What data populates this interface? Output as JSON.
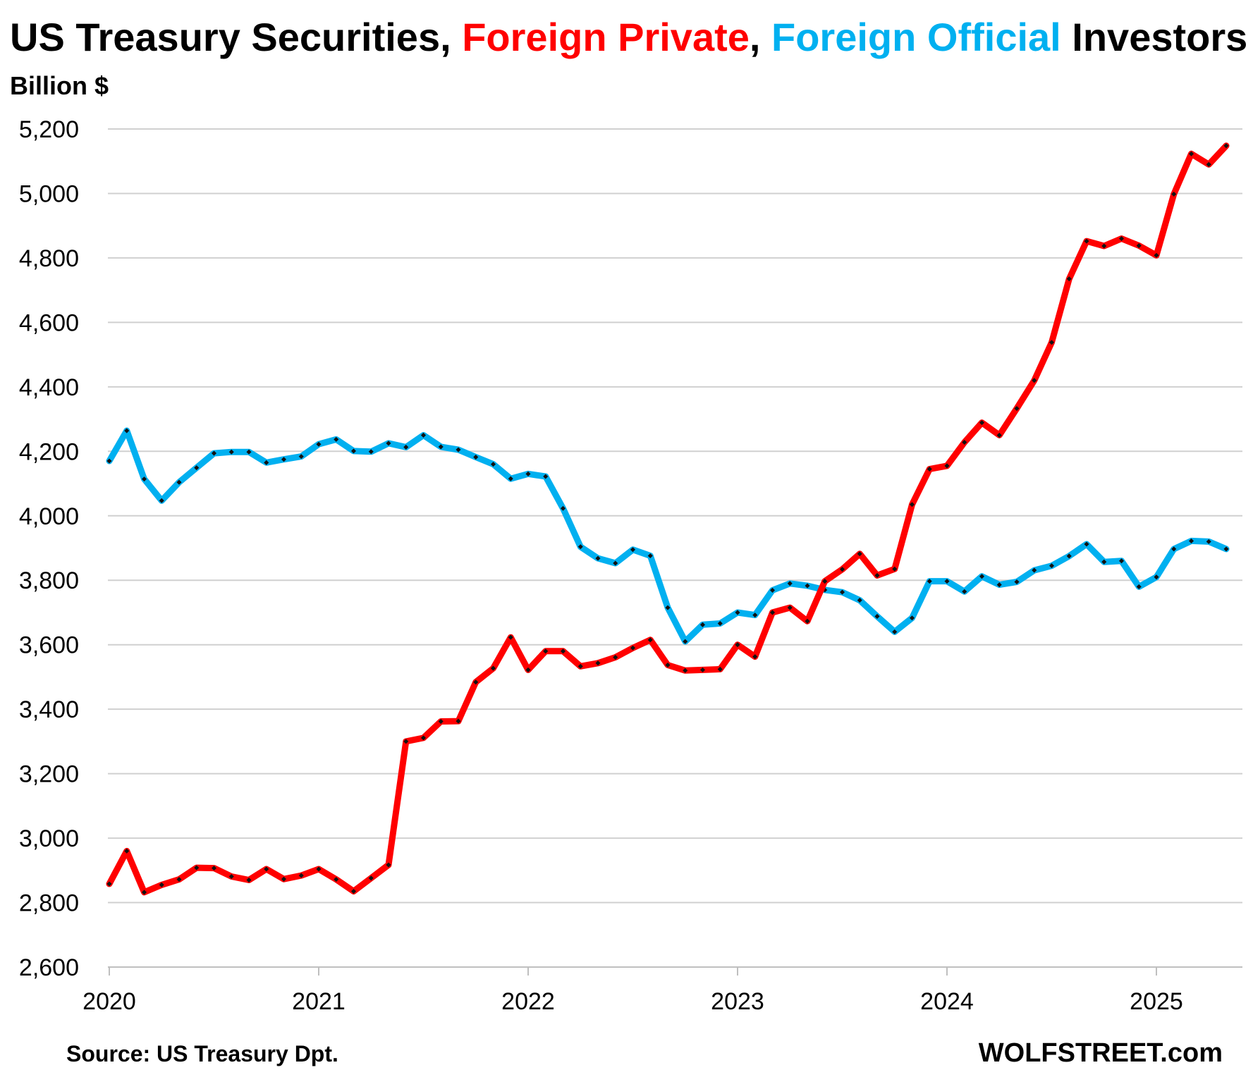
{
  "chart_data": {
    "type": "line",
    "title_parts": [
      {
        "text": "US Treasury Securities, ",
        "color": "#000000"
      },
      {
        "text": "Foreign Private",
        "color": "#ff0000"
      },
      {
        "text": ", ",
        "color": "#000000"
      },
      {
        "text": "Foreign Official",
        "color": "#00b0f0"
      },
      {
        "text": " Investors",
        "color": "#000000"
      }
    ],
    "ylabel": "Billion $",
    "ylim": [
      2600,
      5200
    ],
    "yticks": [
      2600,
      2800,
      3000,
      3200,
      3400,
      3600,
      3800,
      4000,
      4200,
      4400,
      4600,
      4800,
      5000,
      5200
    ],
    "ytick_labels": [
      "2,600",
      "2,800",
      "3,000",
      "3,200",
      "3,400",
      "3,600",
      "3,800",
      "4,000",
      "4,200",
      "4,400",
      "4,600",
      "4,800",
      "5,000",
      "5,200"
    ],
    "xticks": [
      2020,
      2021,
      2022,
      2023,
      2024,
      2025
    ],
    "xtick_labels": [
      "2020",
      "2021",
      "2022",
      "2023",
      "2024",
      "2025"
    ],
    "x_start": "2020-01",
    "x_step_months": 1,
    "series": [
      {
        "name": "Foreign Private",
        "color": "#ff0000",
        "values": [
          2858,
          2960,
          2832,
          2855,
          2872,
          2908,
          2907,
          2881,
          2870,
          2904,
          2873,
          2884,
          2904,
          2872,
          2835,
          2876,
          2917,
          3300,
          3311,
          3362,
          3363,
          3484,
          3527,
          3623,
          3522,
          3580,
          3580,
          3533,
          3543,
          3561,
          3590,
          3615,
          3537,
          3520,
          3522,
          3524,
          3600,
          3563,
          3700,
          3715,
          3673,
          3797,
          3834,
          3882,
          3815,
          3835,
          4035,
          4145,
          4155,
          4228,
          4289,
          4250,
          4333,
          4420,
          4538,
          4735,
          4852,
          4837,
          4860,
          4838,
          4808,
          4998,
          5123,
          5090,
          5148
        ]
      },
      {
        "name": "Foreign Official",
        "color": "#00b0f0",
        "values": [
          4170,
          4264,
          4114,
          4047,
          4104,
          4149,
          4194,
          4198,
          4198,
          4165,
          4175,
          4184,
          4222,
          4237,
          4201,
          4199,
          4225,
          4213,
          4250,
          4214,
          4205,
          4182,
          4160,
          4115,
          4130,
          4122,
          4023,
          3904,
          3868,
          3853,
          3895,
          3876,
          3715,
          3610,
          3662,
          3666,
          3700,
          3692,
          3769,
          3790,
          3783,
          3770,
          3763,
          3738,
          3688,
          3640,
          3683,
          3797,
          3797,
          3765,
          3812,
          3786,
          3795,
          3831,
          3845,
          3875,
          3912,
          3857,
          3860,
          3780,
          3810,
          3897,
          3922,
          3920,
          3897
        ]
      }
    ],
    "source": "Source: US Treasury  Dpt.",
    "brand": "WOLFSTREET.com"
  }
}
